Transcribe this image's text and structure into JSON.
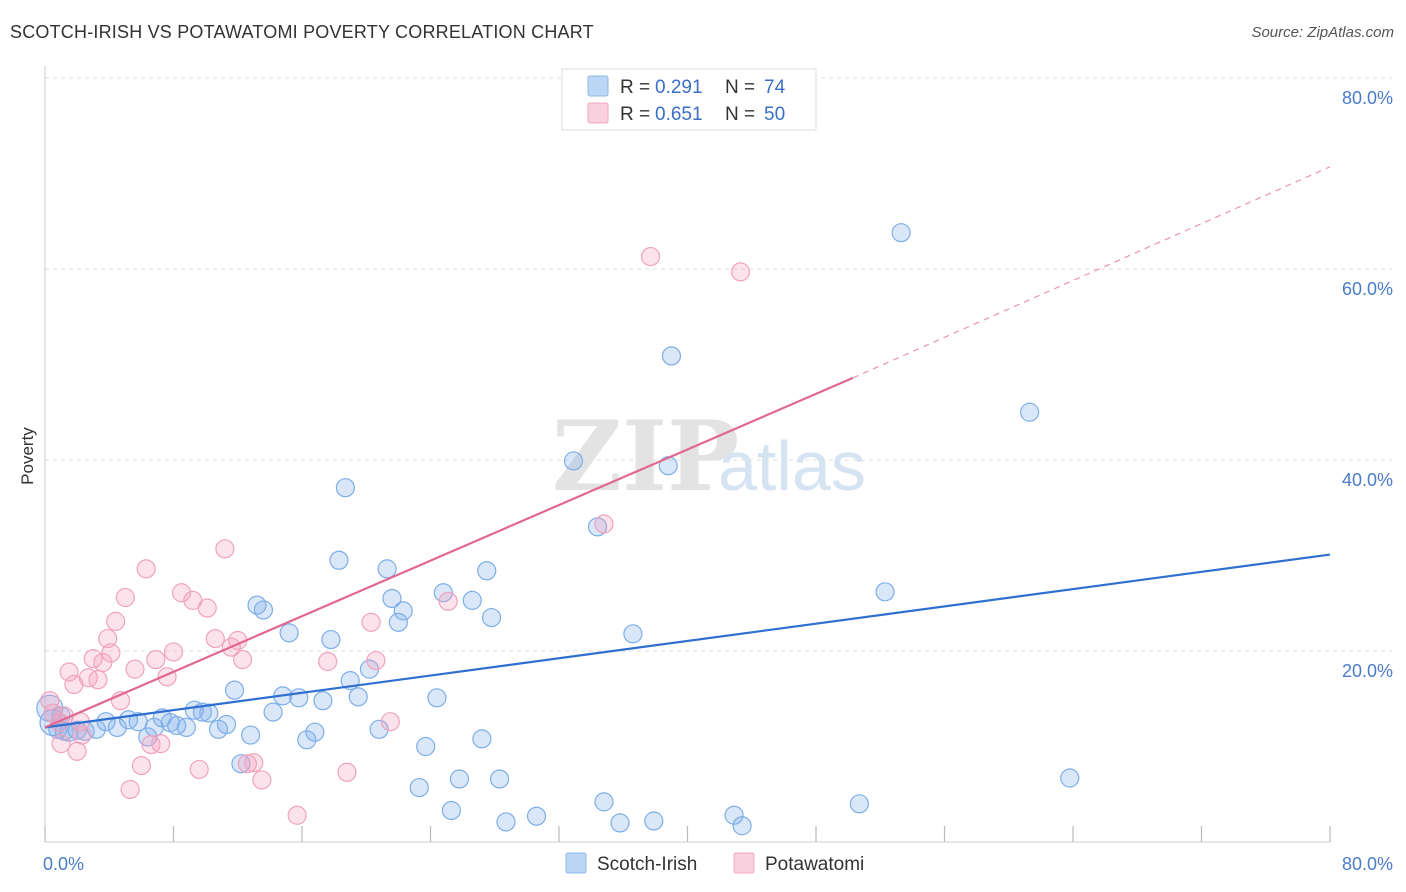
{
  "title": "SCOTCH-IRISH VS POTAWATOMI POVERTY CORRELATION CHART",
  "source": "Source: ZipAtlas.com",
  "watermark": {
    "zip": "ZIP",
    "atlas": "atlas"
  },
  "colors": {
    "scotch_irish": "#6fa8e8",
    "scotch_irish_line": "#2f6fcf",
    "potawatomi": "#f3a6bf",
    "potawatomi_line": "#e0688f",
    "tick_text": "#4a7cc9",
    "grid": "#dddddd"
  },
  "chart_data": {
    "type": "scatter",
    "title": "SCOTCH-IRISH VS POTAWATOMI POVERTY CORRELATION CHART",
    "xlabel": "",
    "ylabel": "Poverty",
    "xlim": [
      0,
      80
    ],
    "ylim": [
      0,
      80
    ],
    "x_tick_labels": [
      "0.0%",
      "80.0%"
    ],
    "y_ticks": [
      20,
      40,
      60,
      80
    ],
    "y_tick_labels": [
      "20.0%",
      "40.0%",
      "60.0%",
      "80.0%"
    ],
    "grid": true,
    "legend_position": "top-center",
    "legend": [
      {
        "name": "Scotch-Irish",
        "r_label": "R =",
        "r": "0.291",
        "n_label": "N =",
        "n": "74"
      },
      {
        "name": "Potawatomi",
        "r_label": "R =",
        "r": "0.651",
        "n_label": "N =",
        "n": "50"
      }
    ],
    "series": [
      {
        "name": "Scotch-Irish",
        "trend": {
          "x0": 0,
          "y0": 12.0,
          "x1": 80,
          "y1": 30.1
        },
        "points": [
          [
            0.3,
            14.0
          ],
          [
            0.5,
            12.5
          ],
          [
            0.8,
            11.8
          ],
          [
            1.0,
            13.2
          ],
          [
            1.2,
            11.6
          ],
          [
            1.5,
            11.5
          ],
          [
            2.0,
            11.7
          ],
          [
            2.5,
            11.6
          ],
          [
            3.2,
            11.8
          ],
          [
            3.8,
            12.6
          ],
          [
            4.5,
            12.0
          ],
          [
            5.2,
            12.8
          ],
          [
            5.8,
            12.6
          ],
          [
            6.4,
            11.0
          ],
          [
            6.8,
            12.0
          ],
          [
            7.3,
            13.0
          ],
          [
            7.8,
            12.5
          ],
          [
            8.2,
            12.2
          ],
          [
            8.8,
            12.0
          ],
          [
            9.3,
            13.8
          ],
          [
            9.8,
            13.6
          ],
          [
            10.2,
            13.5
          ],
          [
            10.8,
            11.8
          ],
          [
            11.3,
            12.3
          ],
          [
            11.8,
            15.9
          ],
          [
            12.2,
            8.2
          ],
          [
            12.8,
            11.2
          ],
          [
            13.2,
            24.8
          ],
          [
            13.6,
            24.3
          ],
          [
            14.2,
            13.6
          ],
          [
            14.8,
            15.3
          ],
          [
            15.2,
            21.9
          ],
          [
            15.8,
            15.1
          ],
          [
            16.3,
            10.7
          ],
          [
            16.8,
            11.5
          ],
          [
            17.3,
            14.8
          ],
          [
            17.8,
            21.2
          ],
          [
            18.3,
            29.5
          ],
          [
            18.7,
            37.1
          ],
          [
            19.0,
            16.9
          ],
          [
            19.5,
            15.2
          ],
          [
            20.2,
            18.1
          ],
          [
            20.8,
            11.8
          ],
          [
            21.3,
            28.6
          ],
          [
            21.6,
            25.5
          ],
          [
            22.0,
            23.0
          ],
          [
            22.3,
            24.2
          ],
          [
            23.3,
            5.7
          ],
          [
            23.7,
            10.0
          ],
          [
            24.4,
            15.1
          ],
          [
            24.8,
            26.1
          ],
          [
            25.3,
            3.3
          ],
          [
            25.8,
            6.6
          ],
          [
            26.6,
            25.3
          ],
          [
            27.2,
            10.8
          ],
          [
            27.5,
            28.4
          ],
          [
            27.8,
            23.5
          ],
          [
            28.3,
            6.6
          ],
          [
            28.7,
            2.1
          ],
          [
            30.6,
            2.7
          ],
          [
            32.9,
            39.9
          ],
          [
            34.4,
            33.0
          ],
          [
            34.8,
            4.2
          ],
          [
            35.8,
            2.0
          ],
          [
            36.6,
            21.8
          ],
          [
            37.9,
            2.2
          ],
          [
            38.8,
            39.4
          ],
          [
            39.0,
            50.9
          ],
          [
            42.9,
            2.8
          ],
          [
            43.4,
            1.7
          ],
          [
            50.7,
            4.0
          ],
          [
            52.3,
            26.2
          ],
          [
            53.3,
            63.8
          ],
          [
            61.3,
            45.0
          ],
          [
            63.8,
            6.7
          ]
        ]
      },
      {
        "name": "Potawatomi",
        "trend": {
          "x0": 0,
          "y0": 12.0,
          "x1": 50.3,
          "y1": 48.6,
          "dash_x1": 80,
          "dash_y1": 70.7
        },
        "points": [
          [
            0.3,
            14.8
          ],
          [
            0.5,
            13.5
          ],
          [
            0.9,
            12.5
          ],
          [
            1.2,
            13.2
          ],
          [
            1.5,
            17.8
          ],
          [
            1.8,
            16.5
          ],
          [
            2.0,
            9.5
          ],
          [
            2.3,
            11.2
          ],
          [
            2.7,
            17.2
          ],
          [
            3.0,
            19.2
          ],
          [
            3.3,
            17.0
          ],
          [
            3.6,
            18.8
          ],
          [
            3.9,
            21.3
          ],
          [
            4.1,
            19.8
          ],
          [
            4.4,
            23.1
          ],
          [
            4.7,
            14.8
          ],
          [
            5.0,
            25.6
          ],
          [
            5.3,
            5.5
          ],
          [
            5.6,
            18.1
          ],
          [
            6.0,
            8.0
          ],
          [
            6.3,
            28.6
          ],
          [
            6.6,
            10.2
          ],
          [
            6.9,
            19.1
          ],
          [
            7.2,
            10.3
          ],
          [
            7.6,
            17.3
          ],
          [
            8.0,
            19.9
          ],
          [
            8.5,
            26.1
          ],
          [
            9.2,
            25.3
          ],
          [
            9.6,
            7.6
          ],
          [
            10.1,
            24.5
          ],
          [
            10.6,
            21.3
          ],
          [
            11.2,
            30.7
          ],
          [
            11.6,
            20.4
          ],
          [
            12.0,
            21.1
          ],
          [
            12.3,
            19.1
          ],
          [
            12.6,
            8.2
          ],
          [
            13.0,
            8.3
          ],
          [
            13.5,
            6.5
          ],
          [
            15.7,
            2.8
          ],
          [
            17.6,
            18.9
          ],
          [
            18.8,
            7.3
          ],
          [
            20.3,
            23.0
          ],
          [
            20.6,
            19.0
          ],
          [
            21.5,
            12.6
          ],
          [
            25.1,
            25.2
          ],
          [
            34.8,
            33.3
          ],
          [
            37.7,
            61.3
          ],
          [
            43.3,
            59.7
          ],
          [
            1.0,
            10.3
          ],
          [
            2.2,
            12.6
          ]
        ]
      }
    ]
  }
}
